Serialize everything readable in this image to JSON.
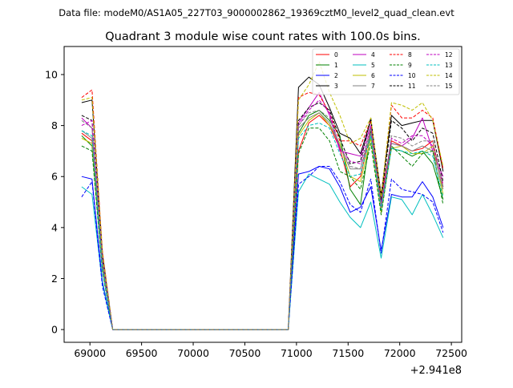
{
  "suptitle": "Data file: modeM0/AS1A05_227T03_9000002862_19369cztM0_level2_quad_clean.evt",
  "chart_data": {
    "type": "line",
    "title": "Quadrant 3 module wise count rates with 100.0s bins.",
    "xlabel": "",
    "ylabel": "",
    "x_offset_label": "+2.941e8",
    "xlim": [
      68750,
      72600
    ],
    "ylim": [
      -0.5,
      11.1
    ],
    "xticks": [
      69000,
      69500,
      70000,
      70500,
      71000,
      71500,
      72000,
      72500
    ],
    "xtick_labels": [
      "69000",
      "69500",
      "70000",
      "70500",
      "71000",
      "71500",
      "72000",
      "72500"
    ],
    "yticks": [
      0,
      2,
      4,
      6,
      8,
      10
    ],
    "ytick_labels": [
      "0",
      "2",
      "4",
      "6",
      "8",
      "10"
    ],
    "legend_loc": "upper right",
    "x": [
      68920,
      69020,
      69120,
      69220,
      69320,
      69420,
      69520,
      69620,
      69720,
      69820,
      69920,
      70020,
      70120,
      70220,
      70320,
      70420,
      70520,
      70620,
      70720,
      70820,
      70920,
      71020,
      71120,
      71220,
      71320,
      71420,
      71520,
      71620,
      71720,
      71820,
      71920,
      72020,
      72120,
      72220,
      72320,
      72420
    ],
    "series": [
      {
        "name": "0",
        "color": "#ff0000",
        "dash": false,
        "values": [
          7.7,
          7.4,
          2.6,
          0,
          0,
          0,
          0,
          0,
          0,
          0,
          0,
          0,
          0,
          0,
          0,
          0,
          0,
          0,
          0,
          0,
          0,
          7.0,
          8.1,
          8.4,
          8.0,
          7.1,
          5.6,
          6.0,
          7.8,
          5.2,
          7.4,
          7.2,
          7.0,
          7.1,
          7.4,
          5.6
        ]
      },
      {
        "name": "1",
        "color": "#008000",
        "dash": false,
        "values": [
          7.6,
          7.2,
          2.4,
          0,
          0,
          0,
          0,
          0,
          0,
          0,
          0,
          0,
          0,
          0,
          0,
          0,
          0,
          0,
          0,
          0,
          0,
          7.7,
          8.4,
          8.6,
          8.2,
          7.6,
          5.5,
          4.9,
          7.8,
          5.0,
          7.1,
          7.0,
          6.8,
          7.0,
          6.5,
          5.1
        ]
      },
      {
        "name": "2",
        "color": "#0000ff",
        "dash": false,
        "values": [
          6.0,
          5.9,
          1.9,
          0,
          0,
          0,
          0,
          0,
          0,
          0,
          0,
          0,
          0,
          0,
          0,
          0,
          0,
          0,
          0,
          0,
          0,
          6.1,
          6.2,
          6.4,
          6.3,
          5.6,
          4.6,
          4.8,
          5.6,
          3.1,
          5.3,
          5.2,
          5.2,
          5.8,
          5.2,
          4.0
        ]
      },
      {
        "name": "3",
        "color": "#000000",
        "dash": false,
        "values": [
          8.9,
          9.0,
          3.0,
          0,
          0,
          0,
          0,
          0,
          0,
          0,
          0,
          0,
          0,
          0,
          0,
          0,
          0,
          0,
          0,
          0,
          0,
          9.5,
          9.9,
          9.6,
          8.7,
          7.7,
          7.5,
          6.9,
          8.2,
          5.3,
          8.4,
          8.0,
          8.1,
          8.2,
          8.2,
          6.2
        ]
      },
      {
        "name": "4",
        "color": "#bf00bf",
        "dash": false,
        "values": [
          8.3,
          7.9,
          2.8,
          0,
          0,
          0,
          0,
          0,
          0,
          0,
          0,
          0,
          0,
          0,
          0,
          0,
          0,
          0,
          0,
          0,
          0,
          8.1,
          8.7,
          9.3,
          8.4,
          7.0,
          6.9,
          6.8,
          8.0,
          4.8,
          7.3,
          7.2,
          7.5,
          8.3,
          7.0,
          6.0
        ]
      },
      {
        "name": "5",
        "color": "#00bfbf",
        "dash": false,
        "values": [
          5.6,
          5.3,
          1.8,
          0,
          0,
          0,
          0,
          0,
          0,
          0,
          0,
          0,
          0,
          0,
          0,
          0,
          0,
          0,
          0,
          0,
          0,
          5.4,
          6.1,
          5.9,
          5.7,
          5.0,
          4.4,
          4.0,
          5.0,
          2.8,
          5.2,
          5.1,
          4.5,
          5.3,
          4.5,
          3.6
        ]
      },
      {
        "name": "6",
        "color": "#bfbf00",
        "dash": false,
        "values": [
          7.5,
          7.3,
          2.5,
          0,
          0,
          0,
          0,
          0,
          0,
          0,
          0,
          0,
          0,
          0,
          0,
          0,
          0,
          0,
          0,
          0,
          0,
          7.6,
          8.2,
          8.5,
          8.0,
          7.3,
          6.0,
          5.8,
          7.5,
          4.6,
          7.1,
          7.2,
          6.9,
          6.9,
          7.2,
          5.3
        ]
      },
      {
        "name": "7",
        "color": "#808080",
        "dash": false,
        "values": [
          7.8,
          7.5,
          2.6,
          0,
          0,
          0,
          0,
          0,
          0,
          0,
          0,
          0,
          0,
          0,
          0,
          0,
          0,
          0,
          0,
          0,
          0,
          7.9,
          8.3,
          8.5,
          8.1,
          7.2,
          6.3,
          6.3,
          7.7,
          4.9,
          7.3,
          7.2,
          7.0,
          7.2,
          7.0,
          5.5
        ]
      },
      {
        "name": "8",
        "color": "#ff0000",
        "dash": true,
        "values": [
          9.1,
          9.4,
          3.1,
          0,
          0,
          0,
          0,
          0,
          0,
          0,
          0,
          0,
          0,
          0,
          0,
          0,
          0,
          0,
          0,
          0,
          0,
          9.1,
          9.3,
          9.2,
          8.5,
          7.4,
          7.4,
          7.2,
          8.2,
          5.2,
          8.8,
          8.3,
          8.3,
          8.6,
          8.3,
          6.3
        ]
      },
      {
        "name": "9",
        "color": "#008000",
        "dash": true,
        "values": [
          7.2,
          7.0,
          2.3,
          0,
          0,
          0,
          0,
          0,
          0,
          0,
          0,
          0,
          0,
          0,
          0,
          0,
          0,
          0,
          0,
          0,
          0,
          6.9,
          7.9,
          7.9,
          7.4,
          6.2,
          6.0,
          5.5,
          7.3,
          4.5,
          7.2,
          6.8,
          6.4,
          6.9,
          7.0,
          4.9
        ]
      },
      {
        "name": "10",
        "color": "#0000ff",
        "dash": true,
        "values": [
          5.2,
          5.8,
          1.7,
          0,
          0,
          0,
          0,
          0,
          0,
          0,
          0,
          0,
          0,
          0,
          0,
          0,
          0,
          0,
          0,
          0,
          0,
          5.7,
          6.0,
          6.4,
          6.4,
          5.8,
          4.9,
          4.6,
          5.9,
          3.0,
          5.9,
          5.5,
          5.4,
          5.3,
          5.0,
          3.8
        ]
      },
      {
        "name": "11",
        "color": "#000000",
        "dash": true,
        "values": [
          8.4,
          8.2,
          2.8,
          0,
          0,
          0,
          0,
          0,
          0,
          0,
          0,
          0,
          0,
          0,
          0,
          0,
          0,
          0,
          0,
          0,
          0,
          8.2,
          8.7,
          8.9,
          8.6,
          7.5,
          6.5,
          6.6,
          8.3,
          5.1,
          8.2,
          7.9,
          7.4,
          7.9,
          7.7,
          5.8
        ]
      },
      {
        "name": "12",
        "color": "#bf00bf",
        "dash": true,
        "values": [
          8.0,
          8.2,
          2.7,
          0,
          0,
          0,
          0,
          0,
          0,
          0,
          0,
          0,
          0,
          0,
          0,
          0,
          0,
          0,
          0,
          0,
          0,
          8.0,
          8.6,
          9.0,
          8.5,
          7.1,
          6.6,
          6.5,
          7.9,
          4.9,
          7.5,
          7.3,
          7.6,
          7.6,
          7.2,
          5.7
        ]
      },
      {
        "name": "13",
        "color": "#00bfbf",
        "dash": true,
        "values": [
          7.8,
          7.6,
          2.4,
          0,
          0,
          0,
          0,
          0,
          0,
          0,
          0,
          0,
          0,
          0,
          0,
          0,
          0,
          0,
          0,
          0,
          0,
          7.5,
          8.0,
          8.1,
          7.9,
          6.9,
          6.0,
          6.1,
          7.6,
          4.7,
          7.1,
          7.0,
          6.9,
          7.0,
          6.8,
          5.2
        ]
      },
      {
        "name": "14",
        "color": "#bfbf00",
        "dash": true,
        "values": [
          9.0,
          9.1,
          3.0,
          0,
          0,
          0,
          0,
          0,
          0,
          0,
          0,
          0,
          0,
          0,
          0,
          0,
          0,
          0,
          0,
          0,
          0,
          9.0,
          9.6,
          10.5,
          9.3,
          8.4,
          7.3,
          7.5,
          8.3,
          5.2,
          8.9,
          8.8,
          8.6,
          8.9,
          8.2,
          6.4
        ]
      },
      {
        "name": "15",
        "color": "#808080",
        "dash": true,
        "values": [
          8.2,
          7.9,
          2.7,
          0,
          0,
          0,
          0,
          0,
          0,
          0,
          0,
          0,
          0,
          0,
          0,
          0,
          0,
          0,
          0,
          0,
          0,
          8.0,
          8.5,
          8.6,
          8.3,
          7.2,
          6.4,
          6.3,
          7.9,
          4.9,
          7.6,
          7.5,
          7.2,
          7.4,
          7.4,
          5.6
        ]
      }
    ]
  }
}
